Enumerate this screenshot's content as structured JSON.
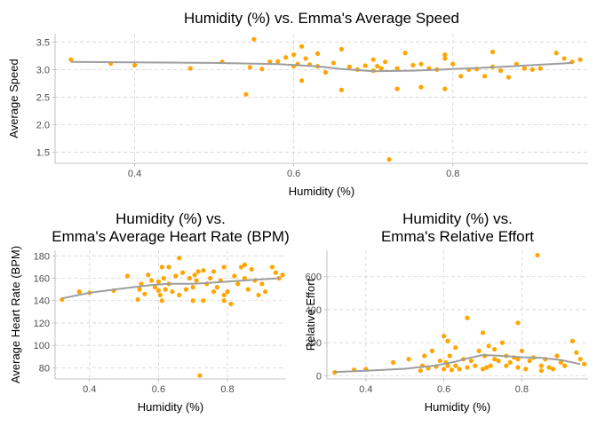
{
  "colors": {
    "point": "#FFA500",
    "trend": "#9E9E9E",
    "grid": "#D3D3D3"
  },
  "chart_data": [
    {
      "type": "scatter",
      "title": "Humidity (%) vs. Emma's Average Speed",
      "title_lines": [
        "Humidity (%) vs. Emma's Average Speed"
      ],
      "xlabel": "Humidity (%)",
      "ylabel": "Average Speed",
      "xlim": [
        0.3,
        0.97
      ],
      "ylim": [
        1.3,
        3.65
      ],
      "xticks": [
        0.4,
        0.6,
        0.8
      ],
      "xtick_labels": [
        "0.4",
        "0.6",
        "0.8"
      ],
      "yticks": [
        1.5,
        2.0,
        2.5,
        3.0,
        3.5
      ],
      "ytick_labels": [
        "1.5",
        "2.0",
        "2.5",
        "3.0",
        "3.5"
      ],
      "grid": true,
      "trend": {
        "x": [
          0.32,
          0.4,
          0.5,
          0.58,
          0.63,
          0.66,
          0.7,
          0.75,
          0.8,
          0.85,
          0.9,
          0.95
        ],
        "y": [
          3.14,
          3.13,
          3.12,
          3.1,
          3.06,
          3.01,
          2.97,
          2.98,
          3.01,
          3.04,
          3.08,
          3.12
        ]
      },
      "points": {
        "x": [
          0.32,
          0.37,
          0.4,
          0.47,
          0.51,
          0.54,
          0.545,
          0.55,
          0.56,
          0.57,
          0.58,
          0.59,
          0.6,
          0.6,
          0.605,
          0.61,
          0.61,
          0.615,
          0.62,
          0.63,
          0.63,
          0.64,
          0.65,
          0.66,
          0.66,
          0.67,
          0.68,
          0.69,
          0.7,
          0.7,
          0.705,
          0.71,
          0.715,
          0.72,
          0.73,
          0.73,
          0.74,
          0.75,
          0.76,
          0.76,
          0.77,
          0.78,
          0.79,
          0.79,
          0.79,
          0.8,
          0.81,
          0.82,
          0.83,
          0.84,
          0.85,
          0.85,
          0.86,
          0.87,
          0.88,
          0.89,
          0.9,
          0.91,
          0.93,
          0.94,
          0.95,
          0.96
        ],
        "y": [
          3.18,
          3.11,
          3.08,
          3.02,
          3.14,
          2.55,
          3.04,
          3.55,
          3.01,
          3.14,
          3.15,
          3.22,
          3.06,
          3.27,
          3.1,
          3.42,
          2.8,
          3.2,
          3.09,
          3.06,
          3.29,
          2.95,
          3.12,
          3.37,
          2.63,
          3.05,
          3.0,
          3.07,
          3.18,
          2.98,
          3.06,
          3.02,
          3.14,
          1.37,
          2.65,
          3.02,
          3.3,
          3.08,
          2.68,
          3.1,
          3.02,
          3.0,
          3.27,
          3.2,
          2.65,
          3.1,
          2.88,
          3.0,
          3.01,
          2.88,
          3.32,
          3.05,
          2.98,
          2.86,
          3.1,
          3.02,
          3.0,
          3.02,
          3.3,
          3.2,
          3.14,
          3.18
        ]
      }
    },
    {
      "type": "scatter",
      "title": "Humidity (%) vs. Emma's Average Heart Rate (BPM)",
      "title_lines": [
        "Humidity (%) vs.",
        "Emma's Average Heart Rate (BPM)"
      ],
      "xlabel": "Humidity (%)",
      "ylabel": "Average Heart Rate (BPM)",
      "xlim": [
        0.3,
        0.97
      ],
      "ylim": [
        70,
        185
      ],
      "xticks": [
        0.4,
        0.6,
        0.8
      ],
      "xtick_labels": [
        "0.4",
        "0.6",
        "0.8"
      ],
      "yticks": [
        80,
        100,
        120,
        140,
        160,
        180
      ],
      "ytick_labels": [
        "80",
        "100",
        "120",
        "140",
        "160",
        "180"
      ],
      "grid": true,
      "trend": {
        "x": [
          0.32,
          0.4,
          0.5,
          0.58,
          0.63,
          0.66,
          0.7,
          0.75,
          0.8,
          0.85,
          0.9,
          0.95
        ],
        "y": [
          142,
          147,
          151,
          154,
          155,
          155,
          155,
          156,
          157,
          158,
          159,
          160
        ]
      },
      "points": {
        "x": [
          0.32,
          0.37,
          0.4,
          0.47,
          0.51,
          0.54,
          0.545,
          0.55,
          0.56,
          0.57,
          0.58,
          0.59,
          0.6,
          0.6,
          0.605,
          0.61,
          0.61,
          0.615,
          0.62,
          0.63,
          0.63,
          0.64,
          0.65,
          0.66,
          0.66,
          0.67,
          0.68,
          0.69,
          0.7,
          0.7,
          0.705,
          0.71,
          0.715,
          0.72,
          0.73,
          0.73,
          0.74,
          0.75,
          0.76,
          0.76,
          0.77,
          0.78,
          0.79,
          0.79,
          0.79,
          0.8,
          0.81,
          0.82,
          0.83,
          0.84,
          0.85,
          0.85,
          0.86,
          0.87,
          0.88,
          0.89,
          0.9,
          0.91,
          0.93,
          0.94,
          0.95,
          0.96
        ],
        "y": [
          141,
          148,
          147,
          149,
          162,
          141,
          150,
          155,
          146,
          163,
          158,
          152,
          149,
          157,
          145,
          170,
          140,
          160,
          150,
          155,
          170,
          148,
          162,
          178,
          145,
          165,
          150,
          160,
          152,
          140,
          163,
          158,
          166,
          73,
          140,
          167,
          155,
          160,
          148,
          166,
          152,
          158,
          170,
          145,
          140,
          148,
          137,
          162,
          155,
          170,
          172,
          160,
          150,
          168,
          158,
          145,
          155,
          148,
          170,
          165,
          160,
          163
        ]
      }
    },
    {
      "type": "scatter",
      "title": "Humidity (%) vs. Emma's Relative Effort",
      "title_lines": [
        "Humidity (%) vs.",
        "Emma's Relative Effort"
      ],
      "xlabel": "Humidity (%)",
      "ylabel": "Relative Effort",
      "xlim": [
        0.3,
        0.97
      ],
      "ylim": [
        -20,
        760
      ],
      "xticks": [
        0.4,
        0.6,
        0.8
      ],
      "xtick_labels": [
        "0.4",
        "0.6",
        "0.8"
      ],
      "yticks": [
        0,
        200,
        400,
        600
      ],
      "ytick_labels": [
        "0",
        "200",
        "400",
        "600"
      ],
      "grid": true,
      "trend": {
        "x": [
          0.32,
          0.4,
          0.5,
          0.58,
          0.63,
          0.66,
          0.7,
          0.75,
          0.8,
          0.85,
          0.9,
          0.95
        ],
        "y": [
          22,
          30,
          42,
          62,
          85,
          105,
          125,
          120,
          112,
          108,
          95,
          70
        ]
      },
      "points": {
        "x": [
          0.32,
          0.37,
          0.4,
          0.47,
          0.51,
          0.54,
          0.545,
          0.55,
          0.56,
          0.57,
          0.58,
          0.59,
          0.6,
          0.6,
          0.605,
          0.61,
          0.61,
          0.615,
          0.62,
          0.63,
          0.63,
          0.64,
          0.65,
          0.66,
          0.66,
          0.67,
          0.68,
          0.69,
          0.7,
          0.7,
          0.705,
          0.71,
          0.715,
          0.72,
          0.73,
          0.73,
          0.74,
          0.75,
          0.76,
          0.76,
          0.77,
          0.78,
          0.79,
          0.79,
          0.79,
          0.8,
          0.81,
          0.82,
          0.83,
          0.84,
          0.85,
          0.85,
          0.86,
          0.87,
          0.88,
          0.89,
          0.9,
          0.91,
          0.93,
          0.94,
          0.95,
          0.96
        ],
        "y": [
          20,
          35,
          40,
          80,
          100,
          30,
          60,
          120,
          45,
          150,
          55,
          90,
          240,
          40,
          80,
          210,
          60,
          120,
          35,
          60,
          170,
          40,
          100,
          350,
          50,
          90,
          60,
          150,
          260,
          40,
          120,
          50,
          180,
          60,
          100,
          160,
          90,
          200,
          120,
          60,
          80,
          110,
          320,
          50,
          100,
          150,
          40,
          90,
          110,
          730,
          60,
          30,
          100,
          50,
          40,
          120,
          80,
          60,
          210,
          140,
          100,
          70
        ]
      }
    }
  ]
}
